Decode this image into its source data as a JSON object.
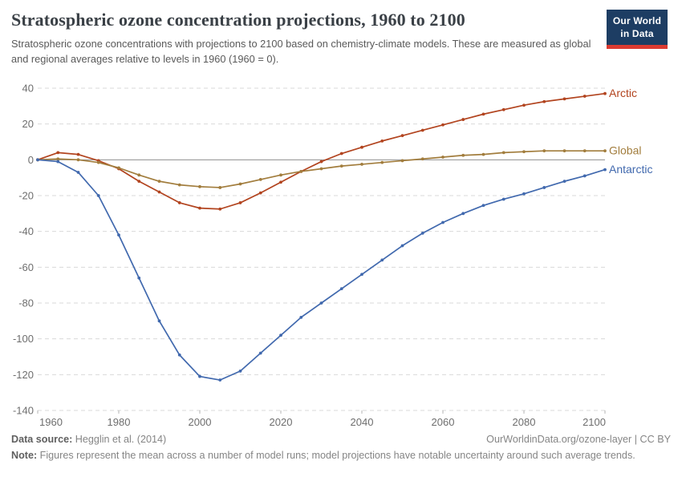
{
  "header": {
    "title": "Stratospheric ozone concentration projections, 1960 to 2100",
    "subtitle": "Stratospheric ozone concentrations with projections to 2100 based on chemistry-climate models. These are measured as global and regional averages relative to levels in 1960 (1960 = 0).",
    "logo": {
      "line1": "Our World",
      "line2": "in Data"
    }
  },
  "chart_data": {
    "type": "line",
    "title": "Stratospheric ozone concentration projections, 1960 to 2100",
    "xlabel": "",
    "ylabel": "",
    "x": [
      1960,
      1965,
      1970,
      1975,
      1980,
      1985,
      1990,
      1995,
      2000,
      2005,
      2010,
      2015,
      2020,
      2025,
      2030,
      2035,
      2040,
      2045,
      2050,
      2055,
      2060,
      2065,
      2070,
      2075,
      2080,
      2085,
      2090,
      2095,
      2100
    ],
    "series": [
      {
        "name": "Arctic",
        "color": "#b2441f",
        "values": [
          0,
          4,
          3,
          -0.5,
          -5,
          -12,
          -18,
          -24,
          -27,
          -27.5,
          -24,
          -18.5,
          -12.5,
          -6.5,
          -1,
          3.5,
          7,
          10.5,
          13.5,
          16.5,
          19.5,
          22.5,
          25.5,
          28,
          30.5,
          32.5,
          34,
          35.5,
          37
        ]
      },
      {
        "name": "Global",
        "color": "#a27d3d",
        "values": [
          0,
          0.5,
          0,
          -1.5,
          -4.5,
          -8.5,
          -12,
          -14,
          -15,
          -15.5,
          -13.5,
          -11,
          -8.5,
          -6.5,
          -5,
          -3.5,
          -2.5,
          -1.5,
          -0.5,
          0.5,
          1.5,
          2.5,
          3,
          4,
          4.5,
          5,
          5,
          5,
          5
        ]
      },
      {
        "name": "Antarctic",
        "color": "#4169ae",
        "values": [
          0,
          -1,
          -7,
          -20,
          -42,
          -66,
          -90,
          -109,
          -121,
          -123,
          -118,
          -108,
          -98,
          -88,
          -80,
          -72,
          -64,
          -56,
          -48,
          -41,
          -35,
          -30,
          -25.5,
          -22,
          -19,
          -15.5,
          -12,
          -9,
          -5.5
        ]
      }
    ],
    "ylim": [
      -140,
      40
    ],
    "yticks": [
      40,
      20,
      0,
      -20,
      -40,
      -60,
      -80,
      -100,
      -120,
      -140
    ],
    "xticks": [
      1960,
      1980,
      2000,
      2020,
      2040,
      2060,
      2080,
      2100
    ],
    "grid": "horizontal dashed",
    "zero_line": true,
    "legend_position": "right of line ends"
  },
  "footer": {
    "datasource_label": "Data source:",
    "datasource_value": " Hegglin et al. (2014)",
    "url": "OurWorldinData.org/ozone-layer | CC BY",
    "note_label": "Note:",
    "note_value": " Figures represent the mean across a number of model runs; model projections have notable uncertainty around such average trends."
  },
  "colors": {
    "arctic": "#b2441f",
    "global": "#a27d3d",
    "antarctic": "#4169ae",
    "grid": "#d9d9d9",
    "zero_line": "#8f8f8f",
    "tick_text": "#6e6e6e",
    "logo_bg": "#1d3d63",
    "logo_bar": "#dc3a31"
  }
}
